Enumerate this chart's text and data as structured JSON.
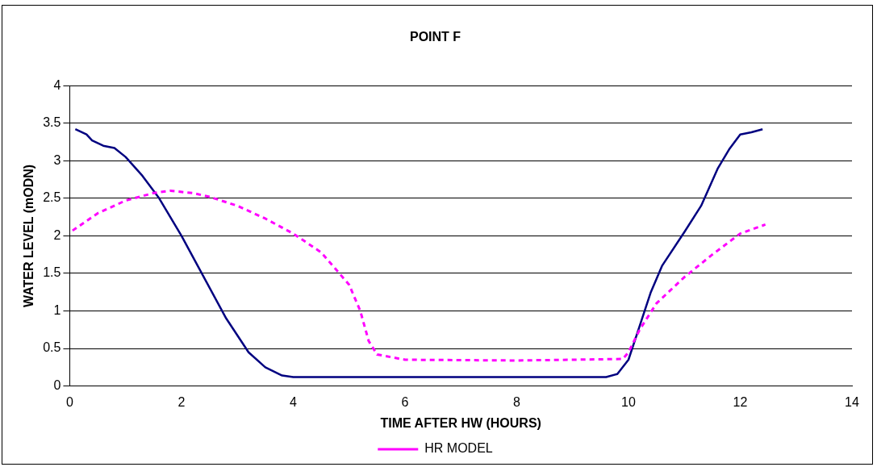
{
  "chart_data": {
    "type": "line",
    "title": "POINT F",
    "xlabel": "TIME AFTER HW (HOURS)",
    "ylabel": "WATER LEVEL (mODN)",
    "xlim": [
      0,
      14
    ],
    "xticks": [
      0,
      2,
      4,
      6,
      8,
      10,
      12,
      14
    ],
    "ylim": [
      0,
      4
    ],
    "yticks": [
      0,
      0.5,
      1,
      1.5,
      2,
      2.5,
      3,
      3.5,
      4
    ],
    "grid": "y",
    "legend": "bottom",
    "marker": "none",
    "series": [
      {
        "name": "HR MODEL",
        "color": "#ff00ff",
        "line_style": "dashed",
        "x": [
          0.05,
          0.5,
          1,
          1.5,
          1.8,
          2.2,
          2.5,
          3,
          3.5,
          4,
          4.5,
          5,
          5.2,
          5.35,
          5.5,
          6,
          8,
          9,
          9.9,
          10,
          10.2,
          10.5,
          11,
          11.5,
          12,
          12.45
        ],
        "values": [
          2.07,
          2.3,
          2.47,
          2.57,
          2.6,
          2.57,
          2.52,
          2.4,
          2.23,
          2.03,
          1.78,
          1.35,
          1,
          0.6,
          0.42,
          0.35,
          0.34,
          0.35,
          0.36,
          0.45,
          0.75,
          1.1,
          1.45,
          1.75,
          2.03,
          2.15
        ]
      },
      {
        "color": "#000080",
        "line_style": "solid",
        "x": [
          0.1,
          0.3,
          0.4,
          0.6,
          0.8,
          1,
          1.3,
          1.6,
          2,
          2.4,
          2.8,
          3.2,
          3.5,
          3.8,
          4,
          6,
          9.6,
          9.8,
          10,
          10.2,
          10.4,
          10.6,
          11,
          11.3,
          11.6,
          11.8,
          12,
          12.2,
          12.4
        ],
        "values": [
          3.42,
          3.35,
          3.27,
          3.2,
          3.17,
          3.05,
          2.8,
          2.5,
          2,
          1.45,
          0.9,
          0.45,
          0.25,
          0.14,
          0.12,
          0.12,
          0.12,
          0.16,
          0.35,
          0.8,
          1.25,
          1.6,
          2.05,
          2.4,
          2.9,
          3.15,
          3.35,
          3.38,
          3.42
        ]
      }
    ]
  }
}
